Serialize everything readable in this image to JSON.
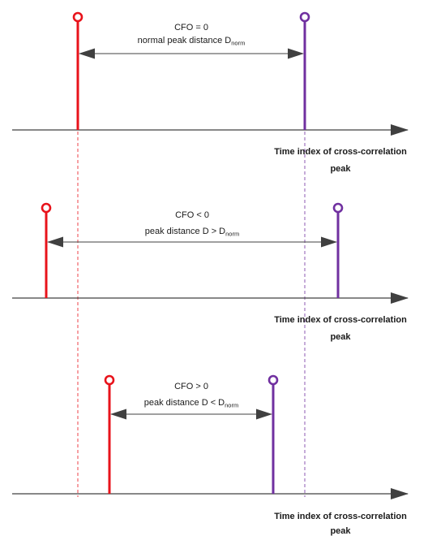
{
  "colors": {
    "red": "#e8131b",
    "purple": "#7030a0",
    "axis": "#404040",
    "arrow": "#404040",
    "guide_red": "#e8131b",
    "guide_purple": "#7030a0"
  },
  "panels": [
    {
      "id": "cfo-zero",
      "cfo_label": "CFO = 0",
      "distance_prefix": "normal peak distance D",
      "distance_sub": "norm",
      "axis_label_line1": "Time index of cross-correlation",
      "axis_label_line2": "peak"
    },
    {
      "id": "cfo-negative",
      "cfo_label": "CFO < 0",
      "distance_prefix": "peak distance D > D",
      "distance_sub": "norm",
      "axis_label_line1": "Time index of cross-correlation",
      "axis_label_line2": "peak"
    },
    {
      "id": "cfo-positive",
      "cfo_label": "CFO > 0",
      "distance_prefix": "peak distance D < D",
      "distance_sub": "norm",
      "axis_label_line1": "Time index of cross-correlation",
      "axis_label_line2": "peak"
    }
  ]
}
